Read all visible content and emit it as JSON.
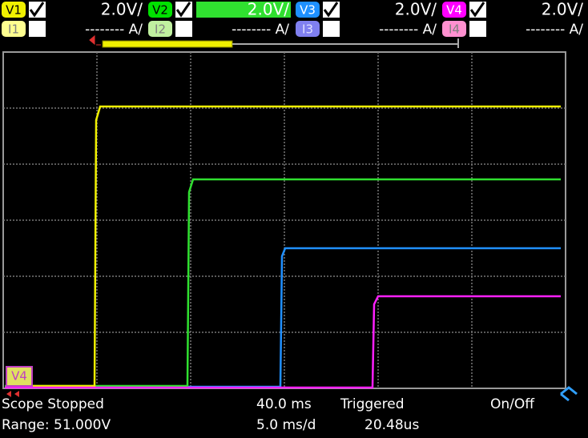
{
  "channels": [
    {
      "voltage_label": "V1",
      "voltage_scale": "2.0V/",
      "current_label": "I1",
      "current_scale": "-------- A/"
    },
    {
      "voltage_label": "V2",
      "voltage_scale": "2.0V/",
      "current_label": "I2",
      "current_scale": "-------- A/"
    },
    {
      "voltage_label": "V3",
      "voltage_scale": "2.0V/",
      "current_label": "I3",
      "current_scale": "-------- A/"
    },
    {
      "voltage_label": "V4",
      "voltage_scale": "2.0V/",
      "current_label": "I4",
      "current_scale": "-------- A/"
    }
  ],
  "marker": "V4",
  "status": {
    "state": "Scope Stopped",
    "range": "Range: 51.000V",
    "time_offset": "40.0 ms",
    "time_scale": "5.0 ms/d",
    "trigger_state": "Triggered",
    "trigger_time": "20.48us",
    "on_off": "On/Off"
  }
}
